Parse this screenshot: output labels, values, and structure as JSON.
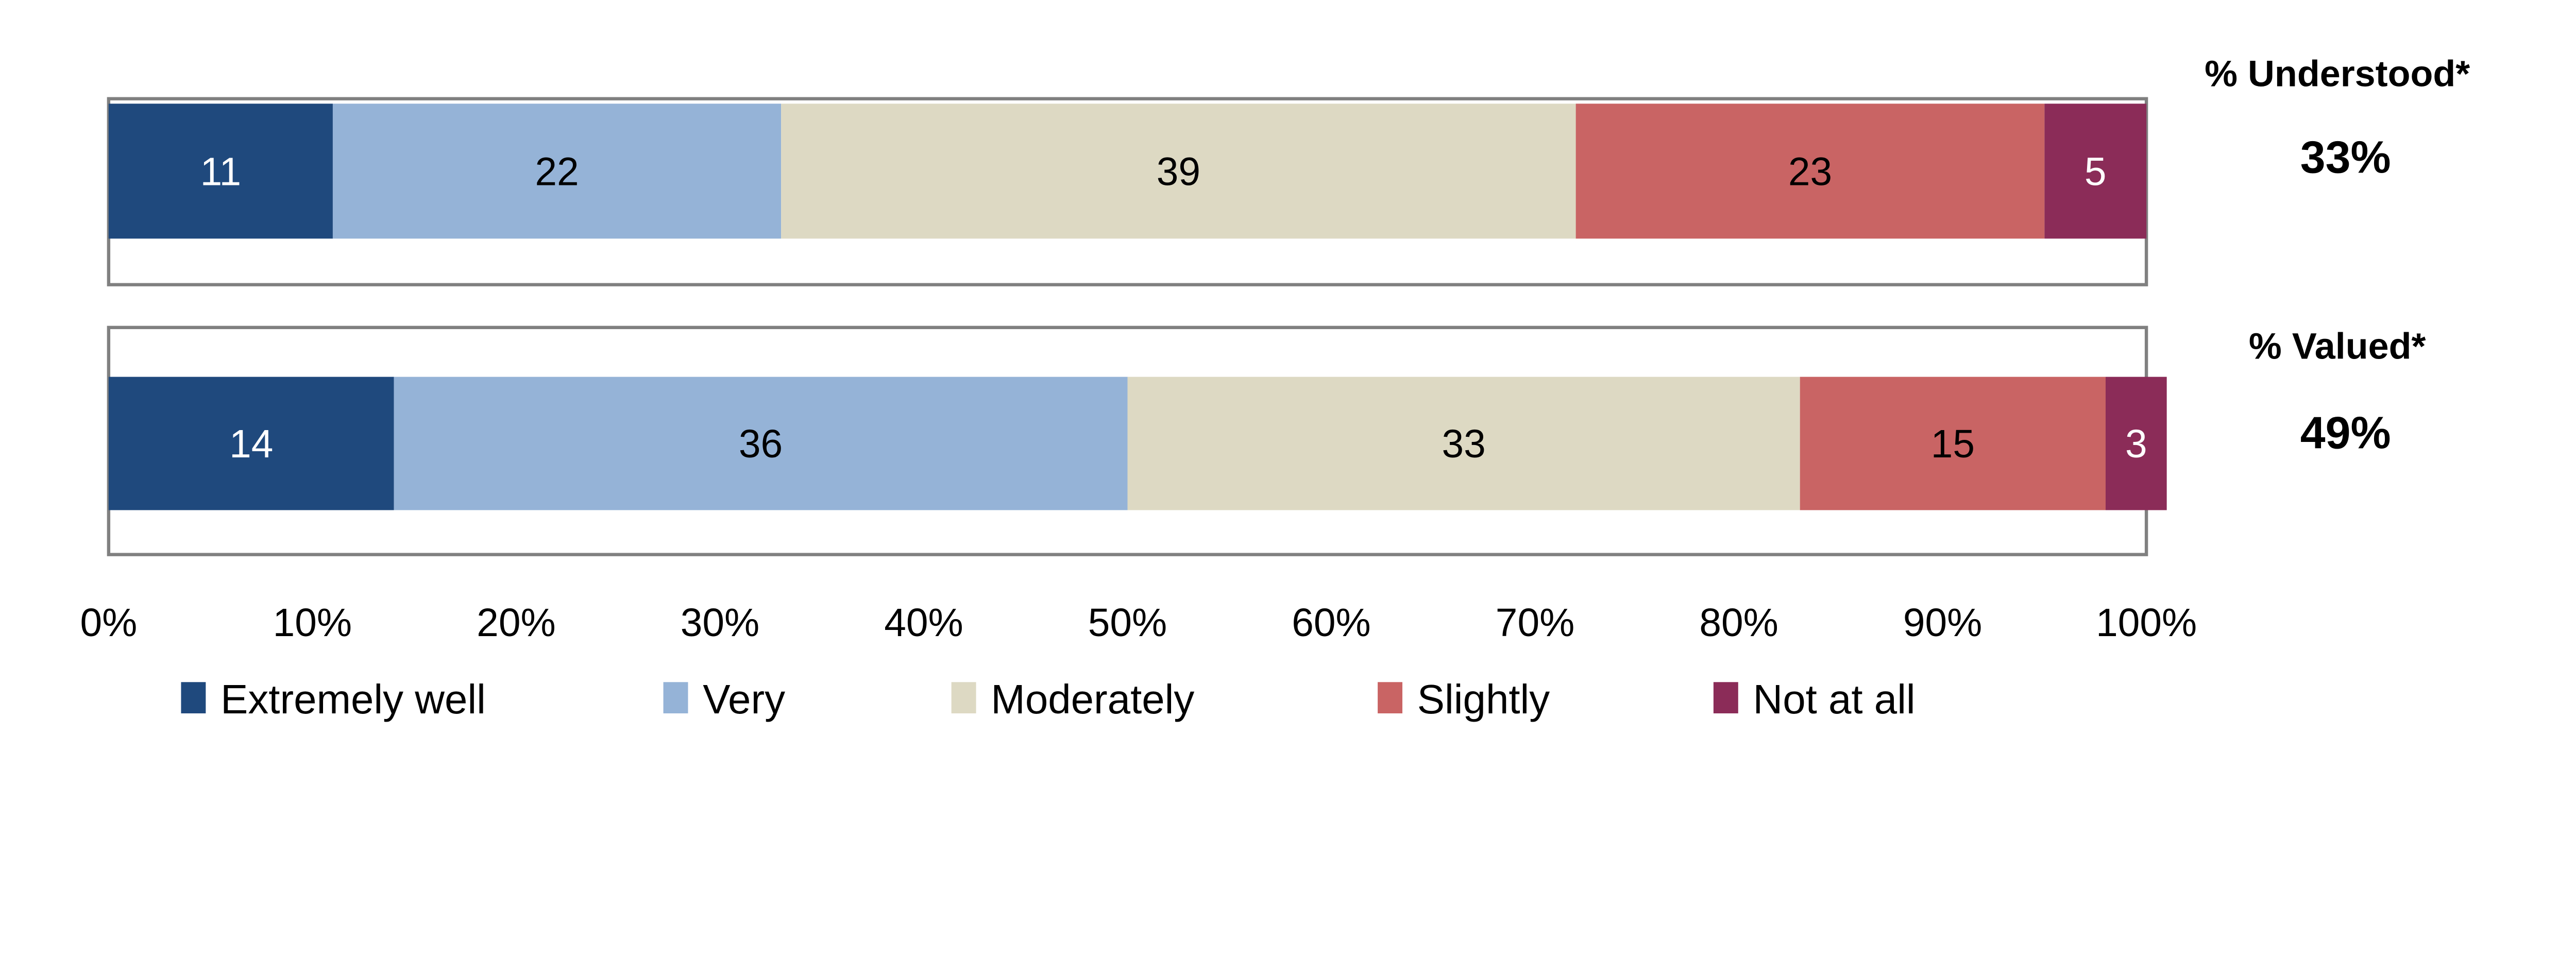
{
  "chart_data": {
    "type": "bar",
    "orientation": "horizontal",
    "stacked": true,
    "categories": [
      "Understood",
      "Valued"
    ],
    "series": [
      {
        "name": "Extremely well",
        "values": [
          11,
          14
        ],
        "color": "#1F497D"
      },
      {
        "name": "Very",
        "values": [
          22,
          36
        ],
        "color": "#95B3D7"
      },
      {
        "name": "Moderately",
        "values": [
          39,
          33
        ],
        "color": "#DDD9C3"
      },
      {
        "name": "Slightly",
        "values": [
          23,
          15
        ],
        "color": "#C96464"
      },
      {
        "name": "Not at all",
        "values": [
          5,
          3
        ],
        "color": "#8B2C58"
      }
    ],
    "label_colors": [
      "#FFFFFF",
      "#000000",
      "#000000",
      "#000000",
      "#FFFFFF"
    ],
    "side_labels": [
      {
        "title": "% Understood*",
        "value": "33%"
      },
      {
        "title": "% Valued*",
        "value": "49%"
      }
    ],
    "xlim": [
      0,
      100
    ],
    "xticks": [
      "0%",
      "10%",
      "20%",
      "30%",
      "40%",
      "50%",
      "60%",
      "70%",
      "80%",
      "90%",
      "100%"
    ],
    "grid": false,
    "legend": "bottom"
  }
}
